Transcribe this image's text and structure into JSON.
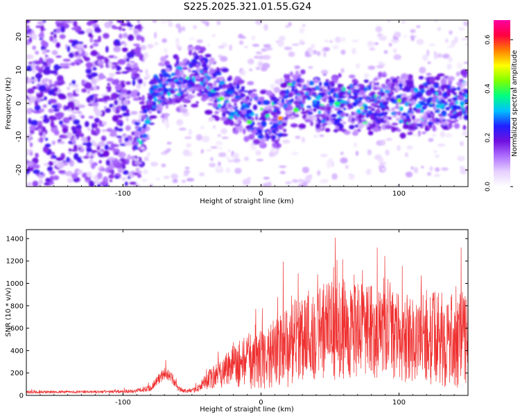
{
  "title": "S225.2025.321.01.55.G24",
  "chart_data": [
    {
      "type": "heatmap",
      "title": "S225.2025.321.01.55.G24",
      "xlabel": "Height of straight line (km)",
      "ylabel": "Frequency (Hz)",
      "xlim": [
        -170,
        150
      ],
      "ylim": [
        -25,
        25
      ],
      "xticks": [
        -100,
        0,
        100
      ],
      "yticks": [
        -20,
        -10,
        0,
        10,
        20
      ],
      "colorbar": {
        "label": "Normalized spectral amplitude",
        "range": [
          0.0,
          0.68
        ],
        "ticks": [
          "0.0",
          "0.2",
          "0.4",
          "0.6"
        ],
        "colors": [
          "#ffffff",
          "#e6d0ff",
          "#b070ff",
          "#7010e0",
          "#2020ff",
          "#00c0ff",
          "#00ff80",
          "#80ff00",
          "#ffff00",
          "#ff8000",
          "#ff0040",
          "#ff00a0"
        ]
      },
      "ridge": {
        "description": "frequency centre of the strong signal band (Hz) vs height (km)",
        "height": [
          -90,
          -82,
          -78,
          -70,
          -60,
          -50,
          -42,
          -35,
          -25,
          -18,
          -10,
          0,
          8,
          14,
          20,
          30,
          45,
          60,
          75,
          90,
          105,
          120,
          135,
          150
        ],
        "frequency": [
          -12,
          -5,
          3,
          5,
          7,
          8,
          8,
          4,
          3,
          0,
          -2,
          -4,
          -5,
          -4,
          2,
          2,
          0,
          0,
          -1,
          1,
          -1,
          0,
          0,
          1
        ]
      }
    },
    {
      "type": "line",
      "xlabel": "Height of straight line (km)",
      "ylabel": "SNR (10 * v/v)",
      "xlim": [
        -170,
        150
      ],
      "ylim": [
        0,
        1480
      ],
      "xticks": [
        -100,
        0,
        100
      ],
      "yticks": [
        0,
        200,
        400,
        600,
        800,
        1000,
        1200,
        1400
      ],
      "series": [
        {
          "name": "SNR",
          "color": "#ef3030",
          "envelope": {
            "height": [
              -170,
              -110,
              -90,
              -80,
              -75,
              -70,
              -65,
              -60,
              -55,
              -50,
              -45,
              -40,
              -30,
              -20,
              -10,
              0,
              10,
              20,
              30,
              50,
              70,
              80,
              90,
              100,
              110,
              120,
              130,
              140,
              150
            ],
            "baseline": [
              30,
              32,
              40,
              70,
              130,
              200,
              160,
              60,
              40,
              40,
              70,
              120,
              200,
              280,
              300,
              320,
              380,
              430,
              550,
              580,
              580,
              560,
              550,
              520,
              500,
              520,
              500,
              480,
              520
            ],
            "spread": [
              20,
              20,
              30,
              50,
              70,
              100,
              80,
              40,
              25,
              30,
              60,
              120,
              220,
              320,
              420,
              450,
              500,
              600,
              700,
              750,
              700,
              700,
              650,
              650,
              650,
              700,
              700,
              700,
              700
            ]
          }
        }
      ]
    }
  ]
}
